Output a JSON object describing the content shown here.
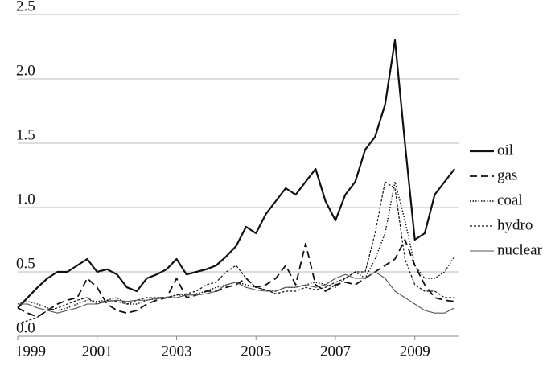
{
  "chart_data": {
    "type": "line",
    "x": [
      1999,
      1999.25,
      1999.5,
      1999.75,
      2000,
      2000.25,
      2000.5,
      2000.75,
      2001,
      2001.25,
      2001.5,
      2001.75,
      2002,
      2002.25,
      2002.5,
      2002.75,
      2003,
      2003.25,
      2003.5,
      2003.75,
      2004,
      2004.25,
      2004.5,
      2004.75,
      2005,
      2005.25,
      2005.5,
      2005.75,
      2006,
      2006.25,
      2006.5,
      2006.75,
      2007,
      2007.25,
      2007.5,
      2007.75,
      2008,
      2008.25,
      2008.5,
      2008.75,
      2009,
      2009.25,
      2009.5,
      2009.75,
      2010
    ],
    "series": [
      {
        "name": "oil",
        "color": "#111111",
        "dash": "none",
        "width": 2.2,
        "values": [
          0.22,
          0.3,
          0.38,
          0.45,
          0.5,
          0.5,
          0.55,
          0.6,
          0.5,
          0.52,
          0.48,
          0.38,
          0.35,
          0.45,
          0.48,
          0.52,
          0.6,
          0.48,
          0.5,
          0.52,
          0.55,
          0.62,
          0.7,
          0.85,
          0.8,
          0.95,
          1.05,
          1.15,
          1.1,
          1.2,
          1.3,
          1.05,
          0.9,
          1.1,
          1.2,
          1.45,
          1.55,
          1.8,
          2.3,
          1.5,
          0.75,
          0.8,
          1.1,
          1.2,
          1.3
        ]
      },
      {
        "name": "gas",
        "color": "#111111",
        "dash": "9 5",
        "width": 1.8,
        "values": [
          0.22,
          0.18,
          0.15,
          0.2,
          0.25,
          0.28,
          0.3,
          0.45,
          0.38,
          0.25,
          0.2,
          0.18,
          0.2,
          0.25,
          0.28,
          0.3,
          0.45,
          0.3,
          0.32,
          0.35,
          0.35,
          0.38,
          0.4,
          0.45,
          0.38,
          0.4,
          0.45,
          0.55,
          0.4,
          0.72,
          0.4,
          0.35,
          0.4,
          0.42,
          0.4,
          0.45,
          0.5,
          0.55,
          0.6,
          0.75,
          0.55,
          0.4,
          0.3,
          0.28,
          0.27
        ]
      },
      {
        "name": "coal",
        "color": "#111111",
        "dash": "1.5 2",
        "width": 1.4,
        "values": [
          0.25,
          0.27,
          0.25,
          0.22,
          0.2,
          0.22,
          0.25,
          0.28,
          0.27,
          0.28,
          0.3,
          0.25,
          0.25,
          0.28,
          0.3,
          0.3,
          0.32,
          0.32,
          0.33,
          0.35,
          0.38,
          0.4,
          0.42,
          0.4,
          0.38,
          0.36,
          0.35,
          0.38,
          0.38,
          0.4,
          0.42,
          0.4,
          0.38,
          0.45,
          0.5,
          0.45,
          0.6,
          0.8,
          1.2,
          0.9,
          0.55,
          0.45,
          0.45,
          0.5,
          0.62
        ]
      },
      {
        "name": "hydro",
        "color": "#111111",
        "dash": "3 2",
        "width": 1.2,
        "values": [
          0.1,
          0.12,
          0.15,
          0.2,
          0.22,
          0.25,
          0.28,
          0.3,
          0.25,
          0.28,
          0.27,
          0.25,
          0.28,
          0.3,
          0.3,
          0.3,
          0.32,
          0.33,
          0.35,
          0.4,
          0.42,
          0.5,
          0.55,
          0.45,
          0.38,
          0.36,
          0.33,
          0.35,
          0.35,
          0.38,
          0.36,
          0.38,
          0.42,
          0.45,
          0.5,
          0.5,
          0.8,
          1.2,
          1.15,
          0.6,
          0.4,
          0.35,
          0.35,
          0.3,
          0.3
        ]
      },
      {
        "name": "nuclear",
        "color": "#555555",
        "dash": "none",
        "width": 1.1,
        "values": [
          0.25,
          0.25,
          0.22,
          0.2,
          0.18,
          0.2,
          0.22,
          0.25,
          0.25,
          0.27,
          0.28,
          0.27,
          0.28,
          0.28,
          0.29,
          0.3,
          0.3,
          0.32,
          0.32,
          0.33,
          0.35,
          0.4,
          0.42,
          0.38,
          0.36,
          0.35,
          0.35,
          0.38,
          0.38,
          0.4,
          0.38,
          0.4,
          0.45,
          0.48,
          0.45,
          0.45,
          0.5,
          0.45,
          0.35,
          0.3,
          0.25,
          0.2,
          0.18,
          0.18,
          0.22
        ]
      }
    ],
    "xlim": [
      1999,
      2010.1
    ],
    "xticks": [
      1999,
      2001,
      2003,
      2005,
      2007,
      2009
    ],
    "ylim": [
      0,
      2.5
    ],
    "yticks": [
      {
        "value": 0,
        "label": "0.0"
      },
      0.5,
      {
        "value": 1,
        "label": "1.0"
      },
      1.5,
      {
        "value": 2,
        "label": "2.0"
      },
      2.5
    ],
    "grid": true,
    "legend": "right"
  }
}
